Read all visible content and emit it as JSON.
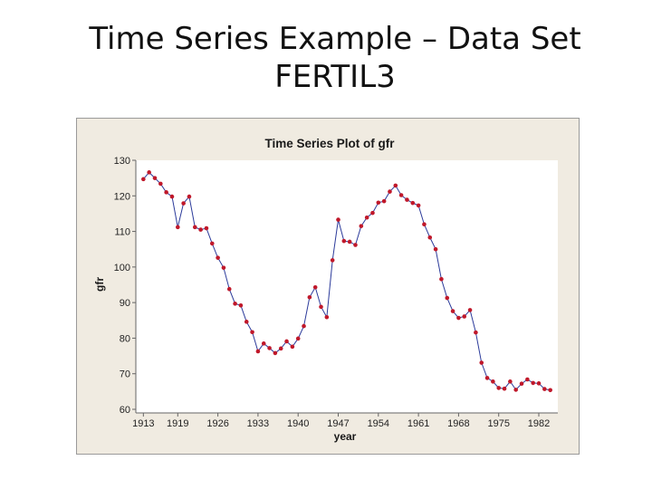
{
  "slide": {
    "title_line1": "Time Series Example – Data Set",
    "title_line2": "FERTIL3"
  },
  "colors": {
    "frame_bg": "#f0ebe1",
    "plot_bg": "#ffffff",
    "line": "#2b3a9a",
    "marker": "#c0182a"
  },
  "chart_data": {
    "type": "line",
    "title": "Time Series Plot of gfr",
    "xlabel": "year",
    "ylabel": "gfr",
    "xlim": [
      1912,
      1985
    ],
    "ylim": [
      60,
      130
    ],
    "x_ticks": [
      1913,
      1919,
      1926,
      1933,
      1940,
      1947,
      1954,
      1961,
      1968,
      1975,
      1982
    ],
    "y_ticks": [
      60,
      70,
      80,
      90,
      100,
      110,
      120,
      130
    ],
    "grid": false,
    "legend": "none",
    "marker": "circle",
    "series": [
      {
        "x": [
          1913,
          1914,
          1915,
          1916,
          1917,
          1918,
          1919,
          1920,
          1921,
          1922,
          1923,
          1924,
          1925,
          1926,
          1927,
          1928,
          1929,
          1930,
          1931,
          1932,
          1933,
          1934,
          1935,
          1936,
          1937,
          1938,
          1939,
          1940,
          1941,
          1942,
          1943,
          1944,
          1945,
          1946,
          1947,
          1948,
          1949,
          1950,
          1951,
          1952,
          1953,
          1954,
          1955,
          1956,
          1957,
          1958,
          1959,
          1960,
          1961,
          1962,
          1963,
          1964,
          1965,
          1966,
          1967,
          1968,
          1969,
          1970,
          1971,
          1972,
          1973,
          1974,
          1975,
          1976,
          1977,
          1978,
          1979,
          1980,
          1981,
          1982,
          1983,
          1984
        ],
        "values": [
          124.7,
          126.6,
          125.0,
          123.4,
          121.0,
          119.8,
          111.2,
          117.9,
          119.8,
          111.2,
          110.5,
          110.9,
          106.6,
          102.6,
          99.8,
          93.8,
          89.7,
          89.2,
          84.6,
          81.7,
          76.3,
          78.5,
          77.2,
          75.8,
          77.1,
          79.1,
          77.6,
          79.9,
          83.4,
          91.5,
          94.3,
          88.8,
          85.9,
          101.9,
          113.3,
          107.3,
          107.1,
          106.2,
          111.5,
          113.9,
          115.2,
          118.1,
          118.5,
          121.2,
          122.9,
          120.2,
          118.9,
          118.0,
          117.3,
          112.0,
          108.3,
          105.0,
          96.6,
          91.3,
          87.6,
          85.7,
          86.1,
          87.9,
          81.6,
          73.1,
          68.8,
          67.8,
          66.0,
          65.8,
          67.8,
          65.5,
          67.2,
          68.4,
          67.4,
          67.3,
          65.7,
          65.4
        ]
      }
    ]
  }
}
